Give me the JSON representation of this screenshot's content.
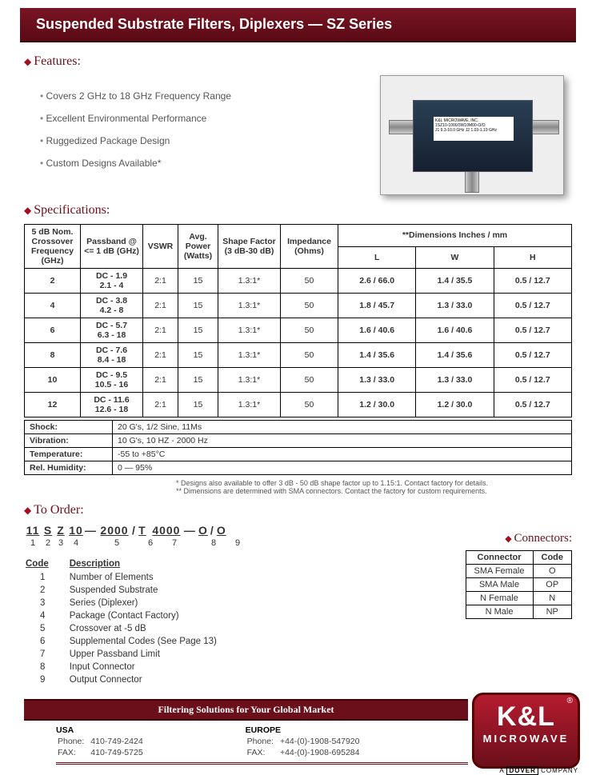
{
  "title": "Suspended Substrate Filters, Diplexers — SZ Series",
  "features_heading": "Features:",
  "features": [
    "Covers 2 GHz to 18 GHz Frequency Range",
    "Excellent Environmental Performance",
    "Ruggedized Package Design",
    "Custom Designs Available*"
  ],
  "product_label": "K&L MICROWAVE, INC.\n1SZ10-1000/3W10M00-O/O\nJ1  9.3-10.0  GHz    J2  1.03-1.19 GHz",
  "specs_heading": "Specifications:",
  "spec_cols": {
    "c1": "5 dB Nom. Crossover Frequency (GHz)",
    "c2": "Passband @ <= 1 dB (GHz)",
    "c3": "VSWR",
    "c4": "Avg. Power (Watts)",
    "c5": "Shape Factor (3 dB-30 dB)",
    "c6": "Impedance (Ohms)",
    "dim_super": "**Dimensions Inches / mm",
    "L": "L",
    "W": "W",
    "H": "H"
  },
  "spec_rows": [
    {
      "f": "2",
      "pb": "DC - 1.9\n2.1 - 4",
      "v": "2:1",
      "p": "15",
      "sf": "1.3:1*",
      "z": "50",
      "L": "2.6 / 66.0",
      "W": "1.4 / 35.5",
      "H": "0.5 / 12.7"
    },
    {
      "f": "4",
      "pb": "DC - 3.8\n4.2 - 8",
      "v": "2:1",
      "p": "15",
      "sf": "1.3:1*",
      "z": "50",
      "L": "1.8 / 45.7",
      "W": "1.3 / 33.0",
      "H": "0.5 / 12.7"
    },
    {
      "f": "6",
      "pb": "DC - 5.7\n6.3 - 18",
      "v": "2:1",
      "p": "15",
      "sf": "1.3:1*",
      "z": "50",
      "L": "1.6 / 40.6",
      "W": "1.6 / 40.6",
      "H": "0.5 / 12.7"
    },
    {
      "f": "8",
      "pb": "DC - 7.6\n8.4 - 18",
      "v": "2:1",
      "p": "15",
      "sf": "1.3:1*",
      "z": "50",
      "L": "1.4 / 35.6",
      "W": "1.4 / 35.6",
      "H": "0.5 / 12.7"
    },
    {
      "f": "10",
      "pb": "DC - 9.5\n10.5 - 16",
      "v": "2:1",
      "p": "15",
      "sf": "1.3:1*",
      "z": "50",
      "L": "1.3 / 33.0",
      "W": "1.3 / 33.0",
      "H": "0.5 / 12.7"
    },
    {
      "f": "12",
      "pb": "DC - 11.6\n12.6 - 18",
      "v": "2:1",
      "p": "15",
      "sf": "1.3:1*",
      "z": "50",
      "L": "1.2 / 30.0",
      "W": "1.2 / 30.0",
      "H": "0.5 / 12.7"
    }
  ],
  "env": [
    {
      "k": "Shock:",
      "v": "20 G's, 1/2 Sine, 11Ms"
    },
    {
      "k": "Vibration:",
      "v": "10 G's, 10 HZ - 2000 Hz"
    },
    {
      "k": "Temperature:",
      "v": "-55 to +85°C"
    },
    {
      "k": "Rel. Humidity:",
      "v": "0 — 95%"
    }
  ],
  "footnote1": "* Designs also available to offer 3 dB - 50 dB shape factor up to 1.15:1. Contact factory for details.",
  "footnote2": "** Dimensions are determined with SMA connectors. Contact the factory for custom requirements.",
  "toorder_heading": "To Order:",
  "order_segs": [
    "11",
    "S",
    "Z",
    "10",
    "—",
    "2000",
    "/",
    "T",
    "4000",
    "—",
    "O",
    "/",
    "O"
  ],
  "order_idx": [
    "1",
    "2",
    "3",
    "4",
    "",
    "5",
    "",
    "6",
    "7",
    "",
    "8",
    "",
    "9"
  ],
  "order_seg_widths": [
    22,
    16,
    16,
    22,
    18,
    44,
    12,
    16,
    44,
    18,
    18,
    12,
    18
  ],
  "code_h1": "Code",
  "code_h2": "Description",
  "codes": [
    {
      "n": "1",
      "d": "Number of Elements"
    },
    {
      "n": "2",
      "d": "Suspended Substrate"
    },
    {
      "n": "3",
      "d": "Series (Diplexer)"
    },
    {
      "n": "4",
      "d": "Package (Contact Factory)"
    },
    {
      "n": "5",
      "d": "Crossover at -5 dB"
    },
    {
      "n": "6",
      "d": "Supplemental Codes (See Page 13)"
    },
    {
      "n": "7",
      "d": "Upper Passband Limit"
    },
    {
      "n": "8",
      "d": "Input Connector"
    },
    {
      "n": "9",
      "d": "Output Connector"
    }
  ],
  "connectors_heading": "Connectors:",
  "conn_h1": "Connector",
  "conn_h2": "Code",
  "connectors": [
    {
      "c": "SMA Female",
      "k": "O"
    },
    {
      "c": "SMA Male",
      "k": "OP"
    },
    {
      "c": "N Female",
      "k": "N"
    },
    {
      "c": "N Male",
      "k": "NP"
    }
  ],
  "footer_band": "Filtering Solutions for Your Global Market",
  "usa_h": "USA",
  "usa_p": "Phone:",
  "usa_pv": "410-749-2424",
  "usa_f": "FAX:",
  "usa_fv": "410-749-5725",
  "eu_h": "EUROPE",
  "eu_p": "Phone:",
  "eu_pv": "+44-(0)-1908-547920",
  "eu_f": "FAX:",
  "eu_fv": "+44-(0)-1908-695284",
  "logo_kl": "K&L",
  "logo_mw": "MICROWAVE",
  "logo_reg": "®",
  "dover_pre": "A ",
  "dover_box": "DOVER",
  "dover_post": " COMPANY"
}
